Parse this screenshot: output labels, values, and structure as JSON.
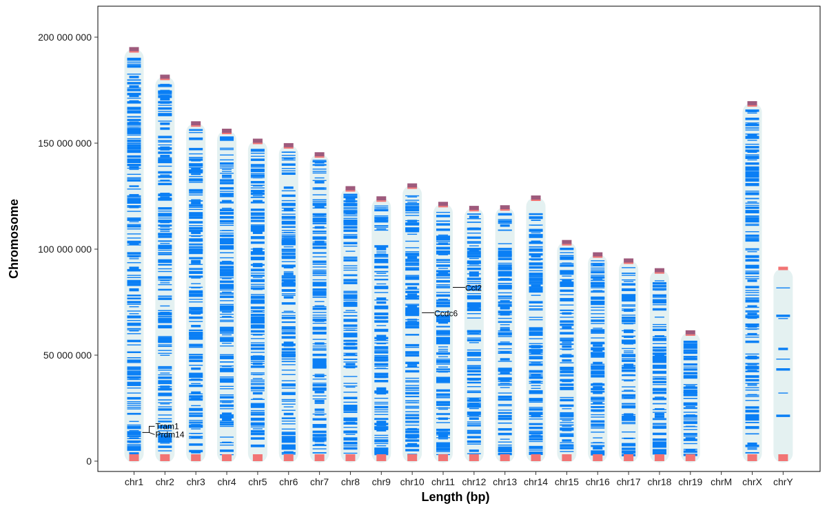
{
  "chart_data": {
    "type": "ideogram",
    "xlabel": "Length (bp)",
    "ylabel": "Chromosome",
    "ylim": [
      0,
      215000000
    ],
    "y_ticks": [
      0,
      50000000,
      100000000,
      150000000,
      200000000
    ],
    "y_tick_labels": [
      "0",
      "50 000 000",
      "100 000 000",
      "150 000 000",
      "200 000 000"
    ],
    "chromosomes": [
      {
        "name": "chr1",
        "length": 195000000
      },
      {
        "name": "chr2",
        "length": 182000000
      },
      {
        "name": "chr3",
        "length": 160000000
      },
      {
        "name": "chr4",
        "length": 156500000
      },
      {
        "name": "chr5",
        "length": 151800000
      },
      {
        "name": "chr6",
        "length": 149700000
      },
      {
        "name": "chr7",
        "length": 145400000
      },
      {
        "name": "chr8",
        "length": 129400000
      },
      {
        "name": "chr9",
        "length": 124600000
      },
      {
        "name": "chr10",
        "length": 130700000
      },
      {
        "name": "chr11",
        "length": 122000000
      },
      {
        "name": "chr12",
        "length": 120100000
      },
      {
        "name": "chr13",
        "length": 120400000
      },
      {
        "name": "chr14",
        "length": 125000000
      },
      {
        "name": "chr15",
        "length": 104000000
      },
      {
        "name": "chr16",
        "length": 98200000
      },
      {
        "name": "chr17",
        "length": 95300000
      },
      {
        "name": "chr18",
        "length": 90700000
      },
      {
        "name": "chr19",
        "length": 61400000
      },
      {
        "name": "chrM",
        "length": 16000
      },
      {
        "name": "chrX",
        "length": 169500000
      },
      {
        "name": "chrY",
        "length": 91400000
      }
    ],
    "annotations": [
      {
        "gene": "Tram1",
        "chromosome": "chr1",
        "position": 13500000
      },
      {
        "gene": "Prdm14",
        "chromosome": "chr1",
        "position": 13500000
      },
      {
        "gene": "Ccdc6",
        "chromosome": "chr10",
        "position": 70000000
      },
      {
        "gene": "Ccl2",
        "chromosome": "chr11",
        "position": 82000000
      }
    ],
    "colors": {
      "chromosome_body": "#e4f1f1",
      "gene_marks": "#0a7ff5",
      "band_marks": "#f27474",
      "top_cap": "#9e5a7c",
      "axis": "#000000"
    }
  }
}
